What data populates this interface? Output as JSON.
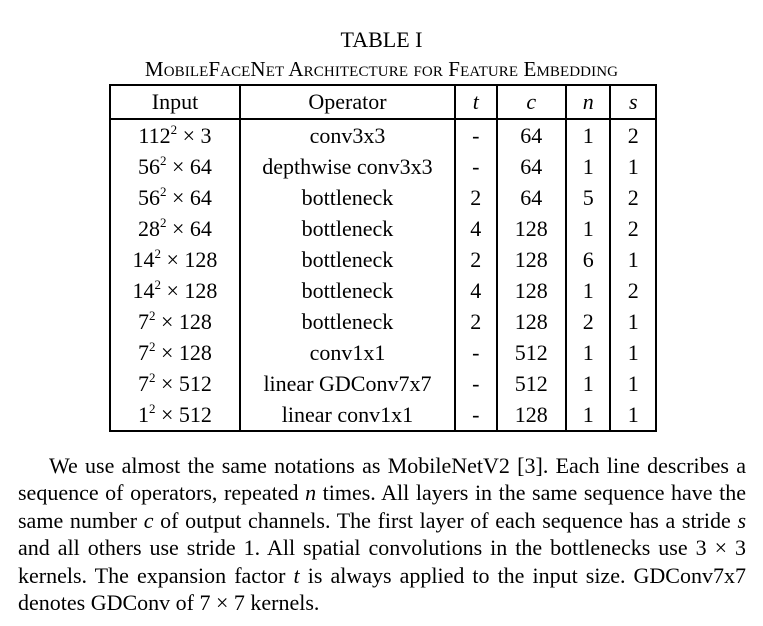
{
  "table": {
    "number_label": "TABLE I",
    "caption": "MobileFaceNet Architecture for Feature Embedding",
    "headers": {
      "input": "Input",
      "operator": "Operator",
      "t": "t",
      "c": "c",
      "n": "n",
      "s": "s"
    },
    "rows": [
      {
        "input_base": "112",
        "input_exp": "2",
        "input_rest": " × 3",
        "operator": "conv3x3",
        "t": "-",
        "c": "64",
        "n": "1",
        "s": "2"
      },
      {
        "input_base": "56",
        "input_exp": "2",
        "input_rest": " × 64",
        "operator": "depthwise conv3x3",
        "t": "-",
        "c": "64",
        "n": "1",
        "s": "1"
      },
      {
        "input_base": "56",
        "input_exp": "2",
        "input_rest": " × 64",
        "operator": "bottleneck",
        "t": "2",
        "c": "64",
        "n": "5",
        "s": "2"
      },
      {
        "input_base": "28",
        "input_exp": "2",
        "input_rest": " × 64",
        "operator": "bottleneck",
        "t": "4",
        "c": "128",
        "n": "1",
        "s": "2"
      },
      {
        "input_base": "14",
        "input_exp": "2",
        "input_rest": " × 128",
        "operator": "bottleneck",
        "t": "2",
        "c": "128",
        "n": "6",
        "s": "1"
      },
      {
        "input_base": "14",
        "input_exp": "2",
        "input_rest": " × 128",
        "operator": "bottleneck",
        "t": "4",
        "c": "128",
        "n": "1",
        "s": "2"
      },
      {
        "input_base": "7",
        "input_exp": "2",
        "input_rest": " × 128",
        "operator": "bottleneck",
        "t": "2",
        "c": "128",
        "n": "2",
        "s": "1"
      },
      {
        "input_base": "7",
        "input_exp": "2",
        "input_rest": " × 128",
        "operator": "conv1x1",
        "t": "-",
        "c": "512",
        "n": "1",
        "s": "1"
      },
      {
        "input_base": "7",
        "input_exp": "2",
        "input_rest": " × 512",
        "operator": "linear GDConv7x7",
        "t": "-",
        "c": "512",
        "n": "1",
        "s": "1"
      },
      {
        "input_base": "1",
        "input_exp": "2",
        "input_rest": " × 512",
        "operator": "linear conv1x1",
        "t": "-",
        "c": "128",
        "n": "1",
        "s": "1"
      }
    ]
  },
  "paragraph": {
    "p1": "We use almost the same notations as MobileNetV2 [3]. Each line describes a sequence of operators, repeated ",
    "v_n": "n",
    "p2": " times. All layers in the same sequence have the same number ",
    "v_c": "c",
    "p3": " of output channels. The first layer of each sequence has a stride ",
    "v_s": "s",
    "p4": " and all others use stride 1. All spatial convolutions in the bottlenecks use 3 × 3 kernels. The expansion factor ",
    "v_t": "t",
    "p5": " is always applied to the input size. GDConv7x7 denotes GDConv of 7 × 7 kernels."
  }
}
